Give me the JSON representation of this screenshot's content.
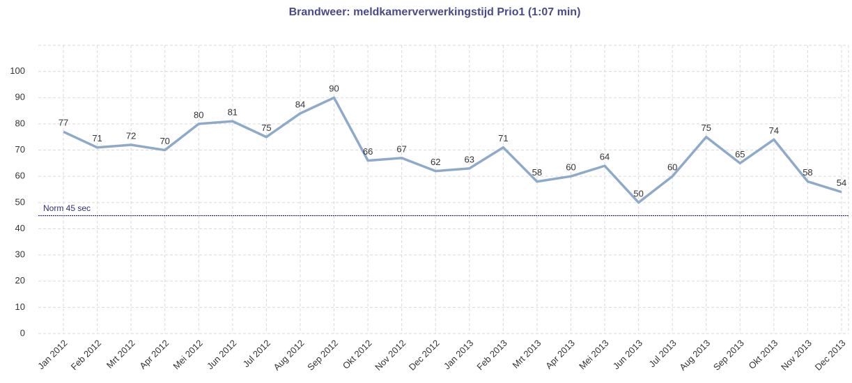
{
  "chart_data": {
    "type": "line",
    "title": "Brandweer: meldkamerverwerkingstijd Prio1 (1:07 min)",
    "categories": [
      "Jan 2012",
      "Feb 2012",
      "Mrt 2012",
      "Apr 2012",
      "Mei 2012",
      "Jun 2012",
      "Jul 2012",
      "Aug 2012",
      "Sep 2012",
      "Okt 2012",
      "Nov 2012",
      "Dec 2012",
      "Jan 2013",
      "Feb 2013",
      "Mrt 2013",
      "Apr 2013",
      "Mei 2013",
      "Jun 2013",
      "Jul 2013",
      "Aug 2013",
      "Sep 2013",
      "Okt 2013",
      "Nov 2013",
      "Dec 2013"
    ],
    "series": [
      {
        "name": "Prio1",
        "color": "#8eaaca",
        "values": [
          77,
          71,
          72,
          70,
          80,
          81,
          75,
          84,
          90,
          66,
          67,
          62,
          63,
          71,
          58,
          60,
          64,
          50,
          60,
          75,
          65,
          74,
          58,
          54
        ]
      }
    ],
    "ylim": [
      0,
      110
    ],
    "yticks": [
      0,
      10,
      20,
      30,
      40,
      50,
      60,
      70,
      80,
      90,
      100
    ],
    "grid": true,
    "reference_lines": [
      {
        "value": 45,
        "label": "Norm 45 sec",
        "color": "#2e2e80"
      }
    ]
  }
}
